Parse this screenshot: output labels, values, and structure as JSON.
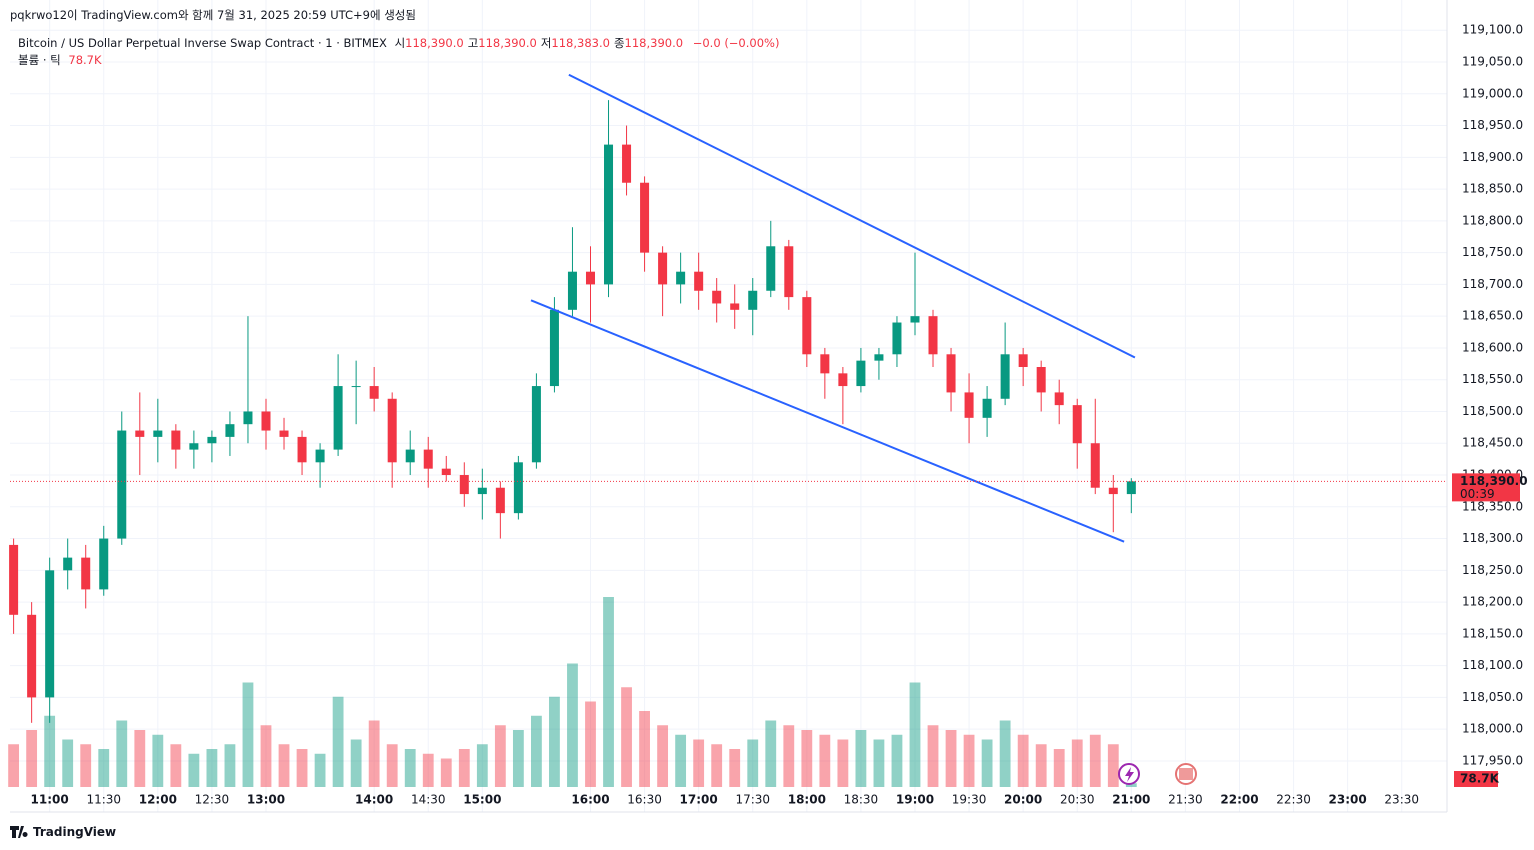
{
  "header": {
    "caption": "pqkrwo12이 TradingView.com와 함께 7월 31, 2025 20:59 UTC+9에 생성됨"
  },
  "chart_data": {
    "type": "candlestick",
    "title": "Bitcoin / US Dollar Perpetual Inverse Swap Contract · 1 · BITMEX",
    "ohlc_legend": [
      {
        "name": "시",
        "value": "118,390.0"
      },
      {
        "name": "고",
        "value": "118,390.0"
      },
      {
        "name": "저",
        "value": "118,383.0"
      },
      {
        "name": "종",
        "value": "118,390.0"
      }
    ],
    "change": "−0.0 (−0.00%)",
    "volume_title": "볼륨 · 틱",
    "up_color": "#089981",
    "down_color": "#f23645",
    "trendline_color": "#2962ff",
    "grid": true,
    "x": [
      "10:40",
      "10:50",
      "11:00",
      "11:10",
      "11:20",
      "11:30",
      "11:40",
      "11:50",
      "12:00",
      "12:10",
      "12:20",
      "12:30",
      "12:40",
      "12:50",
      "13:00",
      "13:10",
      "13:20",
      "13:30",
      "13:40",
      "13:50",
      "14:00",
      "14:10",
      "14:20",
      "14:30",
      "14:40",
      "14:50",
      "15:00",
      "15:10",
      "15:20",
      "15:30",
      "15:40",
      "15:50",
      "16:00",
      "16:10",
      "16:20",
      "16:30",
      "16:40",
      "16:50",
      "17:00",
      "17:10",
      "17:20",
      "17:30",
      "17:40",
      "17:50",
      "18:00",
      "18:10",
      "18:20",
      "18:30",
      "18:40",
      "18:50",
      "19:00",
      "19:10",
      "19:20",
      "19:30",
      "19:40",
      "19:50",
      "20:00",
      "20:10",
      "20:20",
      "20:30",
      "20:40",
      "20:50",
      "21:00"
    ],
    "open": [
      118290,
      118180,
      118050,
      118250,
      118270,
      118220,
      118300,
      118470,
      118460,
      118470,
      118440,
      118450,
      118460,
      118480,
      118500,
      118470,
      118460,
      118420,
      118440,
      118540,
      118540,
      118520,
      118420,
      118440,
      118410,
      118400,
      118370,
      118380,
      118340,
      118420,
      118540,
      118660,
      118720,
      118700,
      118920,
      118860,
      118750,
      118700,
      118720,
      118690,
      118670,
      118660,
      118690,
      118760,
      118680,
      118590,
      118560,
      118540,
      118580,
      118590,
      118640,
      118650,
      118590,
      118530,
      118490,
      118520,
      118590,
      118570,
      118530,
      118510,
      118450,
      118380,
      118370
    ],
    "high": [
      118300,
      118200,
      118270,
      118300,
      118290,
      118320,
      118500,
      118530,
      118520,
      118480,
      118470,
      118470,
      118500,
      118650,
      118520,
      118490,
      118470,
      118450,
      118590,
      118580,
      118570,
      118530,
      118470,
      118460,
      118430,
      118420,
      118410,
      118390,
      118430,
      118560,
      118680,
      118790,
      118760,
      118990,
      118950,
      118870,
      118760,
      118750,
      118750,
      118710,
      118700,
      118710,
      118800,
      118770,
      118690,
      118600,
      118570,
      118600,
      118600,
      118650,
      118750,
      118660,
      118600,
      118560,
      118540,
      118640,
      118600,
      118580,
      118550,
      118520,
      118520,
      118400,
      118395
    ],
    "low": [
      118150,
      118010,
      118010,
      118220,
      118190,
      118210,
      118290,
      118400,
      118420,
      118410,
      118410,
      118420,
      118430,
      118450,
      118440,
      118440,
      118400,
      118380,
      118430,
      118480,
      118500,
      118380,
      118400,
      118380,
      118390,
      118350,
      118330,
      118300,
      118330,
      118410,
      118530,
      118650,
      118640,
      118680,
      118840,
      118720,
      118650,
      118670,
      118660,
      118640,
      118630,
      118620,
      118680,
      118660,
      118570,
      118520,
      118480,
      118530,
      118550,
      118570,
      118620,
      118570,
      118500,
      118450,
      118460,
      118510,
      118540,
      118500,
      118480,
      118410,
      118370,
      118310,
      118340
    ],
    "close": [
      118180,
      118050,
      118250,
      118270,
      118220,
      118300,
      118470,
      118460,
      118470,
      118440,
      118450,
      118460,
      118480,
      118500,
      118470,
      118460,
      118420,
      118440,
      118540,
      118540,
      118520,
      118420,
      118440,
      118410,
      118400,
      118370,
      118380,
      118340,
      118420,
      118540,
      118660,
      118720,
      118700,
      118920,
      118860,
      118750,
      118700,
      118720,
      118690,
      118670,
      118660,
      118690,
      118760,
      118680,
      118590,
      118560,
      118540,
      118580,
      118590,
      118640,
      118650,
      118590,
      118530,
      118490,
      118520,
      118590,
      118570,
      118530,
      118510,
      118450,
      118380,
      118370,
      118390
    ],
    "volume": {
      "values": [
        900000,
        1200000,
        1500000,
        1000000,
        900000,
        800000,
        1400000,
        1200000,
        1100000,
        900000,
        700000,
        800000,
        900000,
        2200000,
        1300000,
        900000,
        800000,
        700000,
        1900000,
        1000000,
        1400000,
        900000,
        800000,
        700000,
        600000,
        800000,
        900000,
        1300000,
        1200000,
        1500000,
        1900000,
        2600000,
        1800000,
        4000000,
        2100000,
        1600000,
        1300000,
        1100000,
        1000000,
        900000,
        800000,
        1000000,
        1400000,
        1300000,
        1200000,
        1100000,
        1000000,
        1200000,
        1000000,
        1100000,
        2200000,
        1300000,
        1200000,
        1100000,
        1000000,
        1400000,
        1100000,
        900000,
        800000,
        1000000,
        1100000,
        900000,
        78700
      ],
      "value_labels": [
        null,
        null,
        null,
        null,
        null,
        null,
        null,
        null,
        null,
        null,
        null,
        null,
        null,
        null,
        null,
        null,
        null,
        null,
        null,
        null,
        null,
        null,
        null,
        null,
        null,
        null,
        null,
        null,
        null,
        null,
        null,
        null,
        null,
        null,
        null,
        null,
        null,
        null,
        null,
        null,
        null,
        null,
        null,
        null,
        null,
        null,
        null,
        null,
        null,
        null,
        null,
        null,
        null,
        null,
        null,
        null,
        null,
        null,
        null,
        null,
        null,
        null,
        "78.7K"
      ]
    },
    "current_price": {
      "value": 118390,
      "label": "118,390.0"
    },
    "countdown": "00:39",
    "trendlines": [
      {
        "x": [
          "15:48",
          "21:02"
        ],
        "y": [
          119030,
          118585
        ]
      },
      {
        "x": [
          "15:27",
          "20:56"
        ],
        "y": [
          118675,
          118295
        ]
      }
    ],
    "xlim": [
      "10:38",
      "23:54"
    ],
    "xticks": [
      "11:00",
      "11:30",
      "12:00",
      "12:30",
      "13:00",
      "14:00",
      "14:30",
      "15:00",
      "16:00",
      "16:30",
      "17:00",
      "17:30",
      "18:00",
      "18:30",
      "19:00",
      "19:30",
      "20:00",
      "20:30",
      "21:00",
      "21:30",
      "22:00",
      "22:30",
      "23:00",
      "23:30"
    ],
    "ylim": [
      117909,
      119135
    ],
    "yticks": [
      {
        "value": 117950,
        "label": "117,950.0"
      },
      {
        "value": 118000,
        "label": "118,000.0"
      },
      {
        "value": 118050,
        "label": "118,050.0"
      },
      {
        "value": 118100,
        "label": "118,100.0"
      },
      {
        "value": 118150,
        "label": "118,150.0"
      },
      {
        "value": 118200,
        "label": "118,200.0"
      },
      {
        "value": 118250,
        "label": "118,250.0"
      },
      {
        "value": 118300,
        "label": "118,300.0"
      },
      {
        "value": 118350,
        "label": "118,350.0"
      },
      {
        "value": 118400,
        "label": "118,400.0"
      },
      {
        "value": 118450,
        "label": "118,450.0"
      },
      {
        "value": 118500,
        "label": "118,500.0"
      },
      {
        "value": 118550,
        "label": "118,550.0"
      },
      {
        "value": 118600,
        "label": "118,600.0"
      },
      {
        "value": 118650,
        "label": "118,650.0"
      },
      {
        "value": 118700,
        "label": "118,700.0"
      },
      {
        "value": 118750,
        "label": "118,750.0"
      },
      {
        "value": 118800,
        "label": "118,800.0"
      },
      {
        "value": 118850,
        "label": "118,850.0"
      },
      {
        "value": 118900,
        "label": "118,900.0"
      },
      {
        "value": 118950,
        "label": "118,950.0"
      },
      {
        "value": 119000,
        "label": "119,000.0"
      },
      {
        "value": 119050,
        "label": "119,050.0"
      },
      {
        "value": 119100,
        "label": "119,100.0"
      }
    ]
  },
  "footer": {
    "brand": "TradingView"
  }
}
